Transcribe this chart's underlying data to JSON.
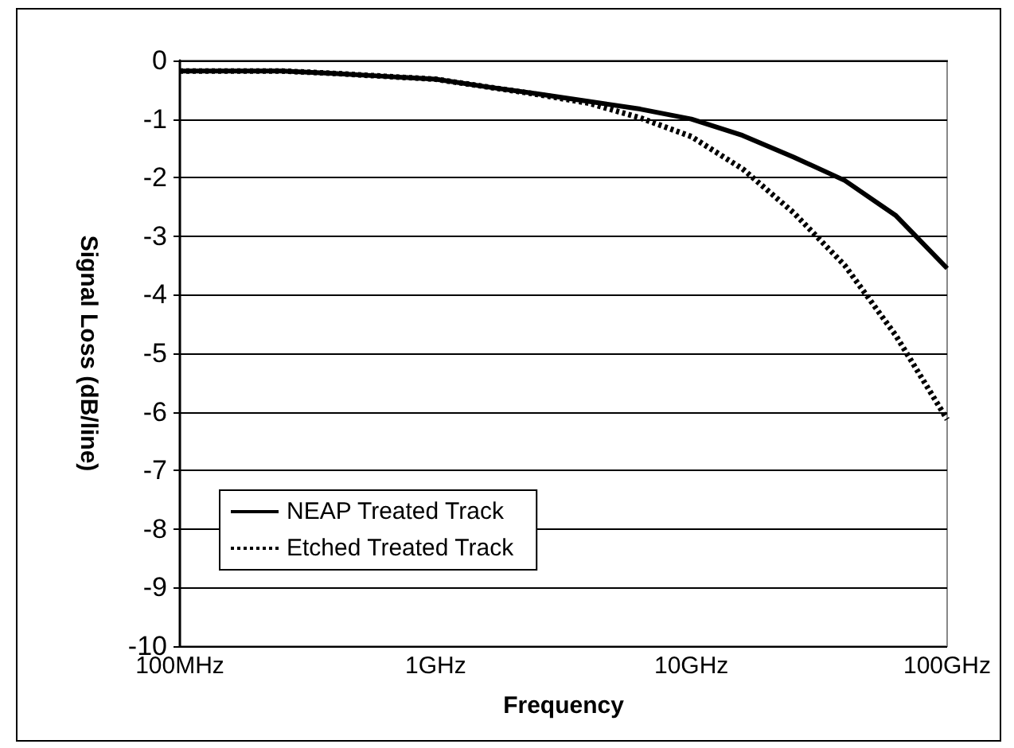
{
  "chart_data": {
    "type": "line",
    "xlabel": "Frequency",
    "ylabel": "Signal Loss (dB/line)",
    "categories": [
      "100MHz",
      null,
      null,
      null,
      null,
      "1GHz",
      null,
      null,
      null,
      null,
      "10GHz",
      null,
      null,
      null,
      null,
      "100GHz"
    ],
    "ylim": [
      -10,
      0
    ],
    "yticks": [
      -10,
      -9,
      -8,
      -7,
      -6,
      -5,
      -4,
      -3,
      -2,
      -1,
      0
    ],
    "grid": "y",
    "legend": "bottom left",
    "marker": "none",
    "series": [
      {
        "name": "NEAP Treated Track",
        "color": "#000000",
        "line_style": "solid",
        "values": [
          -0.18,
          -0.18,
          -0.18,
          -0.22,
          -0.27,
          -0.32,
          -0.45,
          -0.57,
          -0.7,
          -0.83,
          -1.0,
          -1.28,
          -1.65,
          -2.05,
          -2.65,
          -3.55
        ]
      },
      {
        "name": "Etched Treated Track",
        "color": "#000000",
        "line_style": "dotted",
        "values": [
          -0.18,
          -0.18,
          -0.18,
          -0.22,
          -0.27,
          -0.32,
          -0.45,
          -0.58,
          -0.73,
          -0.98,
          -1.3,
          -1.85,
          -2.6,
          -3.5,
          -4.7,
          -6.13
        ]
      }
    ]
  }
}
